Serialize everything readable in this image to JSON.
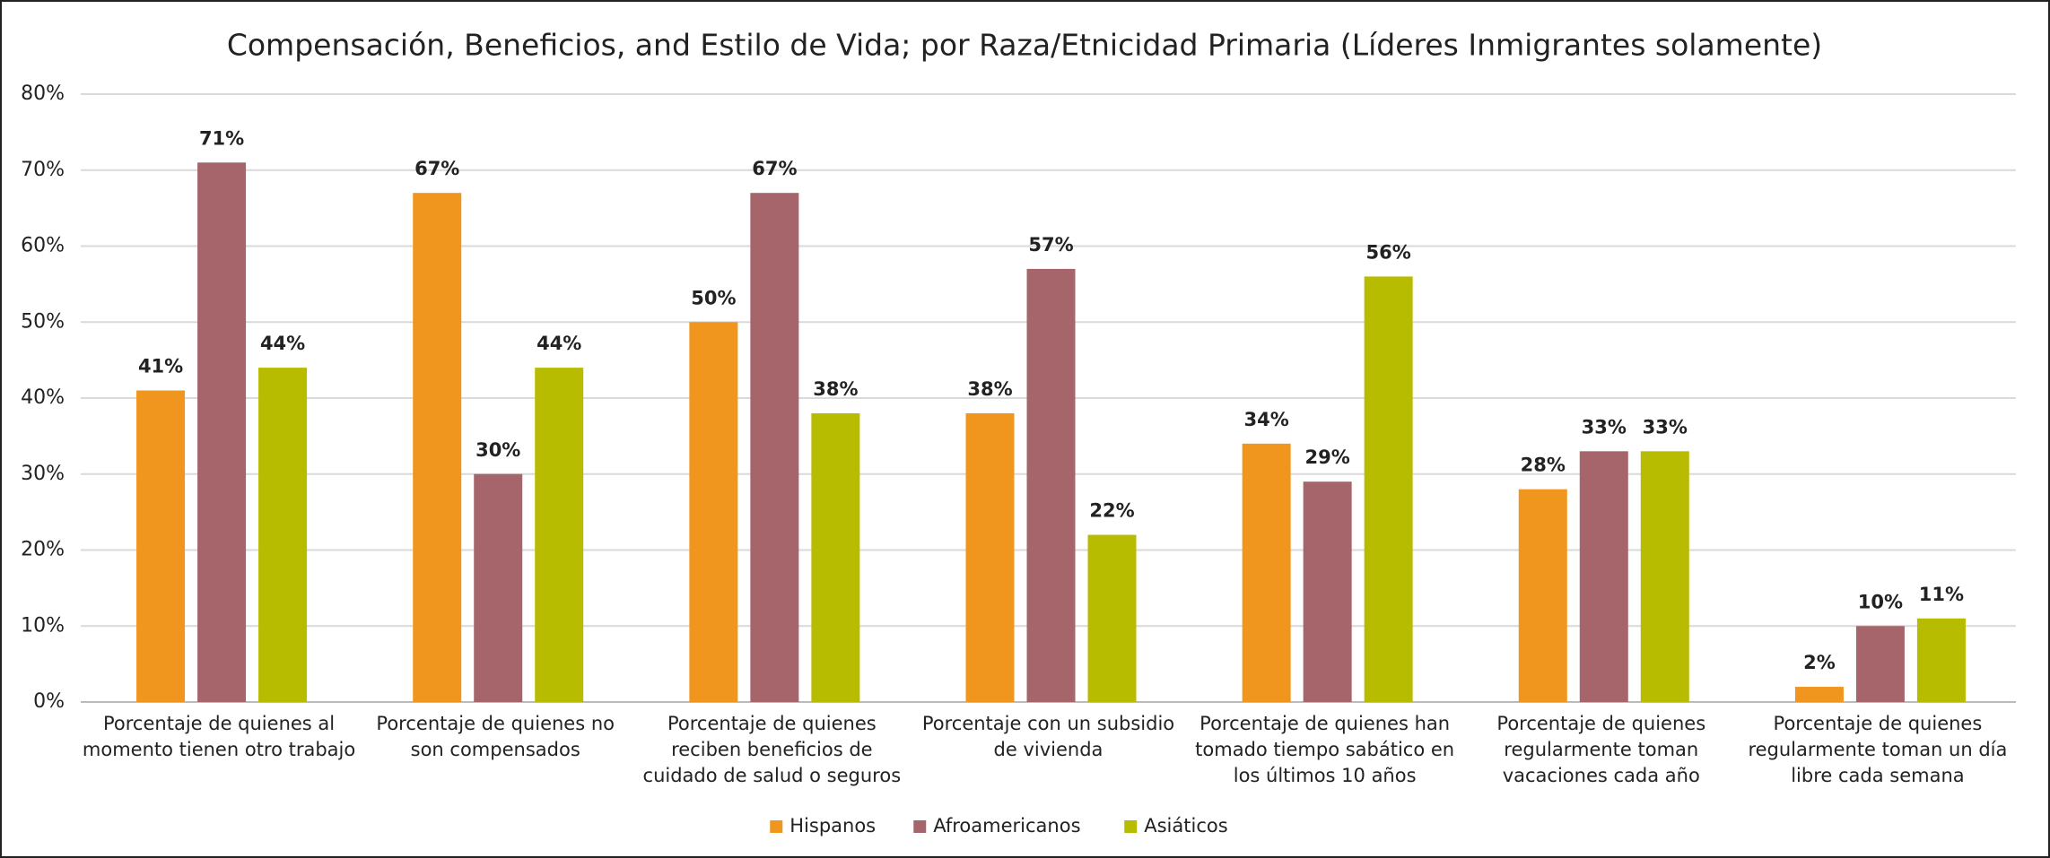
{
  "chart_data": {
    "type": "bar",
    "title": "Compensación, Beneficios, and Estilo de Vida; por Raza/Etnicidad Primaria (Líderes Inmigrantes solamente)",
    "categories": [
      "Porcentaje de quienes al momento tienen otro trabajo",
      "Porcentaje de quienes no son compensados",
      "Porcentaje de quienes reciben beneficios de cuidado de salud o seguros",
      "Porcentaje con un subsidio de vivienda",
      "Porcentaje de quienes han tomado tiempo sabático en los últimos 10 años",
      "Porcentaje de quienes regularmente toman vacaciones cada año",
      "Porcentaje de quienes regularmente toman un día libre cada semana"
    ],
    "series": [
      {
        "name": "Hispanos",
        "color": "#f0961e",
        "values": [
          41,
          67,
          50,
          38,
          34,
          28,
          2
        ],
        "value_labels": [
          "41%",
          "67%",
          "50%",
          "38%",
          "34%",
          "28%",
          "2%"
        ]
      },
      {
        "name": "Afroamericanos",
        "color": "#a6656b",
        "values": [
          71,
          30,
          67,
          57,
          29,
          33,
          10
        ],
        "value_labels": [
          "71%",
          "30%",
          "67%",
          "57%",
          "29%",
          "33%",
          "10%"
        ]
      },
      {
        "name": "Asiáticos",
        "color": "#b8bc00",
        "values": [
          44,
          44,
          38,
          22,
          56,
          33,
          11
        ],
        "value_labels": [
          "44%",
          "44%",
          "38%",
          "22%",
          "56%",
          "33%",
          "11%"
        ]
      }
    ],
    "ylim": [
      0,
      80
    ],
    "yticks": [
      {
        "value": 0,
        "label": "0%"
      },
      {
        "value": 10,
        "label": "10%"
      },
      {
        "value": 20,
        "label": "20%"
      },
      {
        "value": 30,
        "label": "30%"
      },
      {
        "value": 40,
        "label": "40%"
      },
      {
        "value": 50,
        "label": "50%"
      },
      {
        "value": 60,
        "label": "60%"
      },
      {
        "value": 70,
        "label": "70%"
      },
      {
        "value": 80,
        "label": "80%"
      }
    ],
    "grid": true,
    "legend": "bottom"
  }
}
